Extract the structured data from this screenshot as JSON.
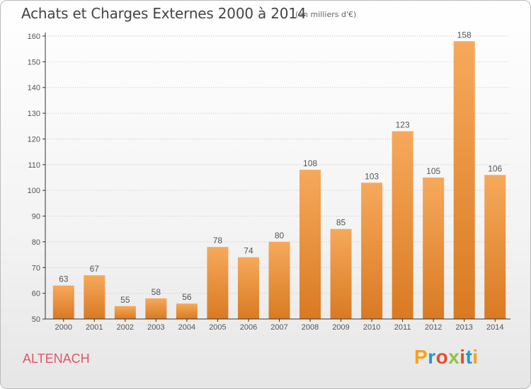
{
  "header": {
    "title": "Achats et Charges Externes 2000 à 2014",
    "subtitle": "(en milliers d'€)"
  },
  "footer": {
    "commune": "ALTENACH",
    "brand": "Proxiti",
    "brand_colors": [
      "#f5a21b",
      "#1e9ad6",
      "#e84b2c",
      "#8dc63f",
      "#e84b2c",
      "#1e9ad6",
      "#f5a21b"
    ]
  },
  "colors": {
    "bar_light": "#f6a95b",
    "bar_dark": "#d97a22",
    "axis": "#333333",
    "grid": "#c9c9c9"
  },
  "chart_data": {
    "type": "bar",
    "title": "Achats et Charges Externes 2000 à 2014",
    "subtitle": "(en milliers d'€)",
    "categories": [
      "2000",
      "2001",
      "2002",
      "2003",
      "2004",
      "2005",
      "2006",
      "2007",
      "2008",
      "2009",
      "2010",
      "2011",
      "2012",
      "2013",
      "2014"
    ],
    "values": [
      63,
      67,
      55,
      58,
      56,
      78,
      74,
      80,
      108,
      85,
      103,
      123,
      105,
      158,
      106
    ],
    "ylim": [
      50,
      160
    ],
    "yticks": [
      50,
      60,
      70,
      80,
      90,
      100,
      110,
      120,
      130,
      140,
      150,
      160
    ],
    "xlabel": "",
    "ylabel": "",
    "grid": true
  }
}
